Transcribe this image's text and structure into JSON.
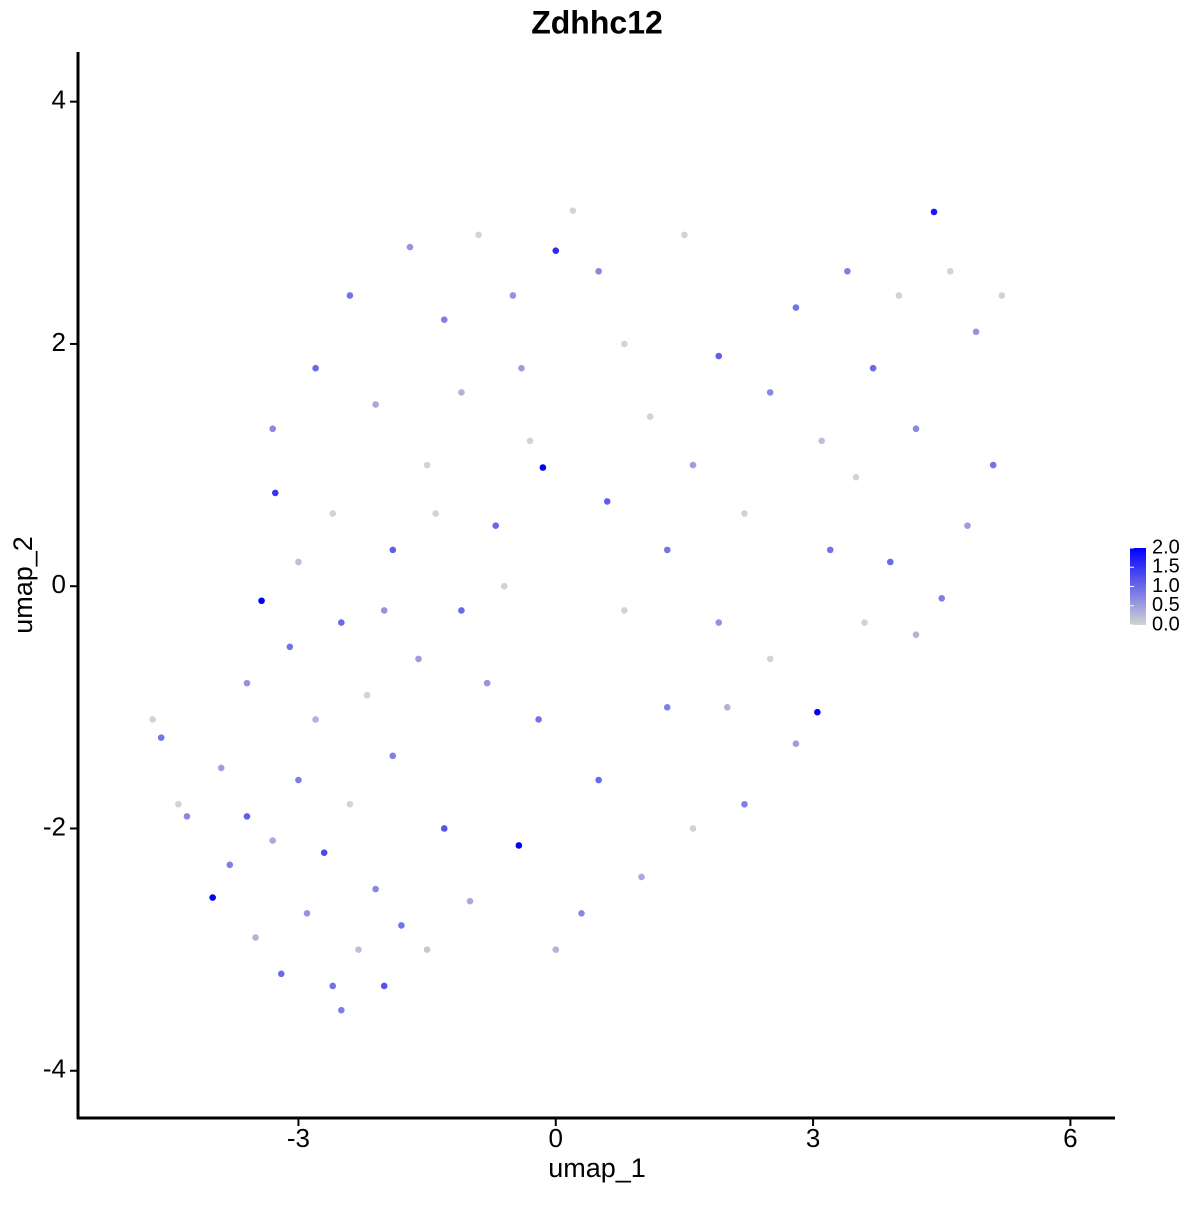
{
  "chart_data": {
    "type": "scatter",
    "title": "Zdhhc12",
    "x_label": "umap_1",
    "y_label": "umap_2",
    "xlim": [
      -5.57,
      6.52
    ],
    "ylim": [
      -4.39,
      4.41
    ],
    "xticks": [
      -3,
      0,
      3,
      6
    ],
    "yticks": [
      -4,
      -2,
      0,
      2,
      4
    ],
    "low_color": "#d3d3d3",
    "high_color": "#0000ff",
    "color_lim": [
      0,
      2
    ],
    "colorbar_ticks": [
      {
        "value": 0,
        "label": "0.0"
      },
      {
        "value": 0.5,
        "label": "0.5"
      },
      {
        "value": 1,
        "label": "1.0"
      },
      {
        "value": 1.5,
        "label": "1.5"
      },
      {
        "value": 2,
        "label": "2.0"
      }
    ],
    "x": [
      -4.0,
      -3.8,
      -3.5,
      -3.2,
      -2.9,
      -2.6,
      -2.3,
      -2.0,
      -1.5,
      -4.3,
      -4.6,
      -4.7,
      -4.4,
      -3.9,
      -3.6,
      -3.3,
      -3.0,
      -2.7,
      -2.4,
      -2.1,
      -3.43,
      -3.6,
      -3.1,
      -2.8,
      -2.5,
      -2.2,
      -1.9,
      -1.6,
      -1.3,
      -1.0,
      -3.27,
      -3.3,
      -3.0,
      -2.8,
      -2.6,
      -2.4,
      -2.1,
      -1.9,
      -1.7,
      -1.5,
      -1.3,
      -1.1,
      -0.9,
      -0.7,
      -0.5,
      -0.3,
      -0.15,
      0,
      0.2,
      0.5,
      0.8,
      1.1,
      1.3,
      1.6,
      1.9,
      2.2,
      2.5,
      2.8,
      3.1,
      3.4,
      3.7,
      4.0,
      4.2,
      4.41,
      4.6,
      4.9,
      5.2,
      5.1,
      4.8,
      4.5,
      4.2,
      3.9,
      3.5,
      3.2,
      3.05,
      2.8,
      2.5,
      2.2,
      1.9,
      1.6,
      1.3,
      1.0,
      0.8,
      0.5,
      0.3,
      0.0,
      -0.2,
      -0.43,
      -0.6,
      -0.8,
      -1.1,
      -1.4,
      -1.8,
      -2.0,
      -0.4,
      0.6,
      1.5,
      2.0,
      3.6,
      -2.5
    ],
    "y": [
      -2.57,
      -2.3,
      -2.9,
      -3.2,
      -2.7,
      -3.3,
      -3.0,
      -3.3,
      -3.0,
      -1.9,
      -1.25,
      -1.1,
      -1.8,
      -1.5,
      -1.9,
      -2.1,
      -1.6,
      -2.2,
      -1.8,
      -2.5,
      -0.12,
      -0.8,
      -0.5,
      -1.1,
      -0.3,
      -0.9,
      -1.4,
      -0.6,
      -2.0,
      -2.6,
      0.77,
      1.3,
      0.2,
      1.8,
      0.6,
      2.4,
      1.5,
      0.3,
      2.8,
      1.0,
      2.2,
      1.6,
      2.9,
      0.5,
      2.4,
      1.2,
      0.98,
      2.77,
      3.1,
      2.6,
      2.0,
      1.4,
      0.3,
      1.0,
      1.9,
      0.6,
      1.6,
      2.3,
      1.2,
      2.6,
      1.8,
      2.4,
      1.3,
      3.09,
      2.6,
      2.1,
      2.4,
      1.0,
      0.5,
      -0.1,
      -0.4,
      0.2,
      0.9,
      0.3,
      -1.04,
      -1.3,
      -0.6,
      -1.8,
      -0.3,
      -2.0,
      -1.0,
      -2.4,
      -0.2,
      -1.6,
      -2.7,
      -3.0,
      -1.1,
      -2.14,
      0.0,
      -0.8,
      -0.2,
      0.6,
      -2.8,
      -0.2,
      1.8,
      0.7,
      2.9,
      -1.0,
      -0.3,
      -3.5
    ],
    "expression": [
      2.0,
      0.8,
      0.3,
      1.0,
      0.6,
      0.9,
      0.2,
      1.2,
      0.1,
      0.7,
      0.9,
      0.0,
      0.0,
      0.5,
      1.1,
      0.4,
      0.8,
      1.3,
      0.0,
      0.7,
      2.0,
      0.6,
      0.9,
      0.3,
      1.0,
      0.0,
      0.8,
      0.5,
      1.2,
      0.4,
      1.5,
      0.7,
      0.2,
      1.0,
      0.0,
      0.9,
      0.4,
      1.1,
      0.6,
      0.0,
      0.8,
      0.3,
      0.0,
      1.0,
      0.6,
      0.0,
      2.0,
      1.6,
      0.0,
      0.7,
      0.0,
      0.0,
      0.9,
      0.5,
      1.1,
      0.0,
      0.7,
      0.9,
      0.2,
      0.8,
      1.0,
      0.0,
      0.7,
      1.8,
      0.0,
      0.6,
      0.0,
      0.9,
      0.5,
      0.8,
      0.3,
      1.0,
      0.0,
      0.9,
      2.0,
      0.5,
      0.0,
      0.8,
      0.6,
      0.0,
      0.8,
      0.4,
      0.0,
      1.0,
      0.7,
      0.3,
      0.9,
      2.0,
      0.0,
      0.6,
      1.0,
      0.0,
      0.9,
      0.6,
      0.5,
      1.1,
      0.0,
      0.3,
      0.0,
      0.8
    ]
  }
}
